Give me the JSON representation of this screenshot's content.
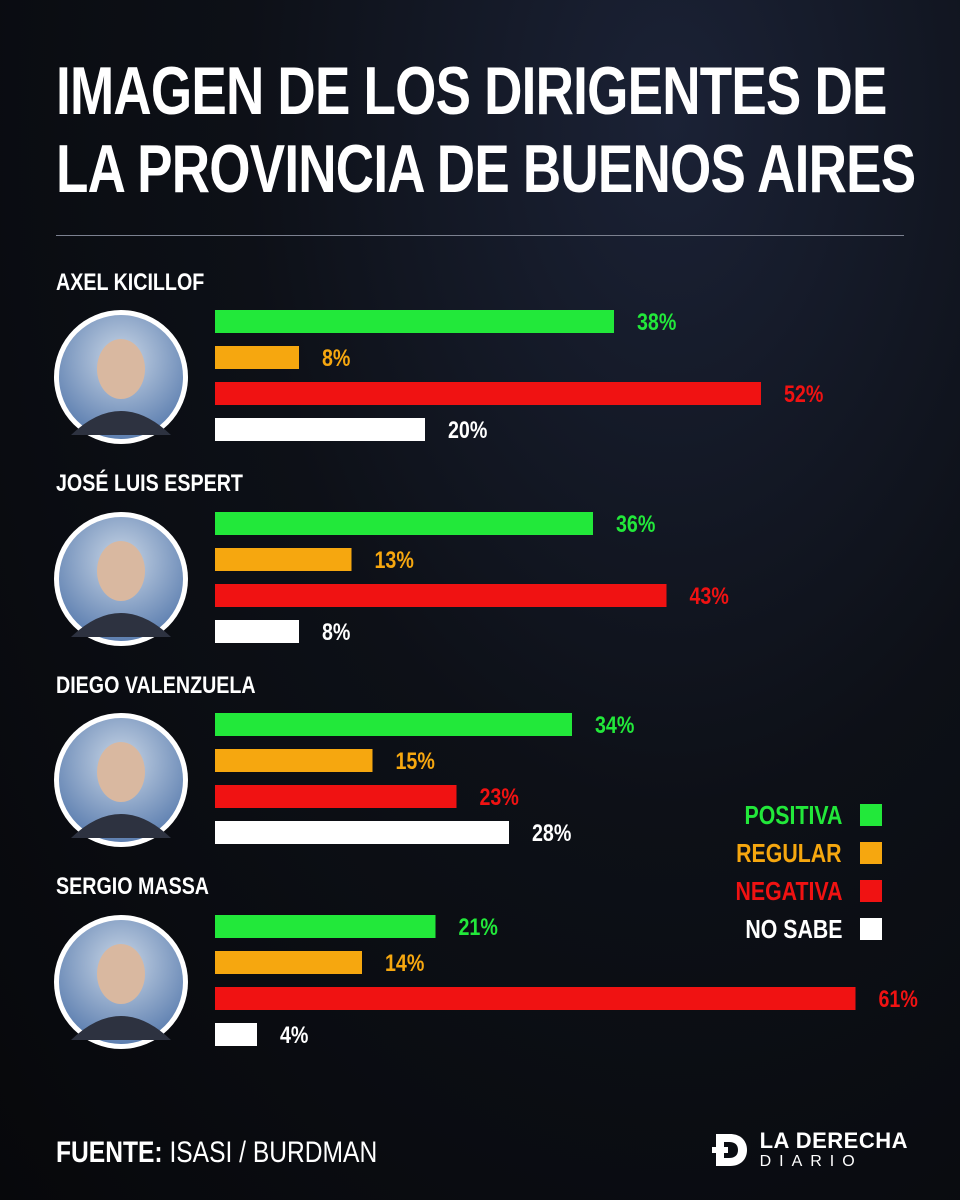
{
  "title_lines": [
    "IMAGEN DE LOS DIRIGENTES DE",
    "LA PROVINCIA DE BUENOS AIRES"
  ],
  "colors": {
    "positiva": "#22e83a",
    "regular": "#f6a70f",
    "negativa": "#f01212",
    "no_sabe": "#ffffff"
  },
  "chart_data": {
    "type": "bar",
    "orientation": "horizontal",
    "title": "IMAGEN DE LOS DIRIGENTES DE LA PROVINCIA DE BUENOS AIRES",
    "categories": [
      "AXEL KICILLOF",
      "JOSÉ LUIS ESPERT",
      "DIEGO VALENZUELA",
      "SERGIO MASSA"
    ],
    "series": [
      {
        "name": "POSITIVA",
        "key": "positiva",
        "values": [
          38,
          36,
          34,
          21
        ]
      },
      {
        "name": "REGULAR",
        "key": "regular",
        "values": [
          8,
          13,
          15,
          14
        ]
      },
      {
        "name": "NEGATIVA",
        "key": "negativa",
        "values": [
          52,
          43,
          23,
          61
        ]
      },
      {
        "name": "NO SABE",
        "key": "no_sabe",
        "values": [
          20,
          8,
          28,
          4
        ]
      }
    ],
    "value_suffix": "%",
    "legend_position": "right"
  },
  "legend": [
    {
      "label": "POSITIVA",
      "key": "positiva"
    },
    {
      "label": "REGULAR",
      "key": "regular"
    },
    {
      "label": "NEGATIVA",
      "key": "negativa"
    },
    {
      "label": "NO SABE",
      "key": "no_sabe"
    }
  ],
  "footer": {
    "source_label": "FUENTE:",
    "source_value": "ISASI / BURDMAN"
  },
  "brand": {
    "line1": "LA DERECHA",
    "line2": "DIARIO"
  }
}
